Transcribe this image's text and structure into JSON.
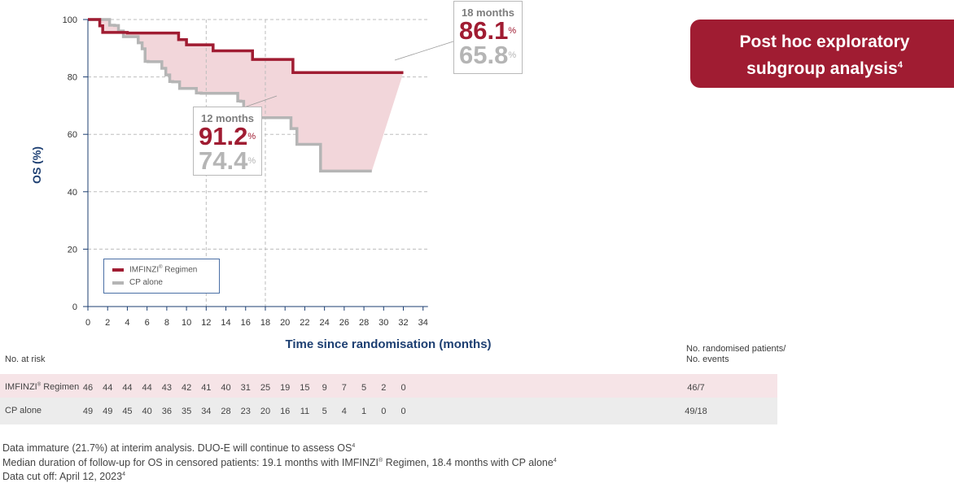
{
  "chart_data": {
    "type": "line",
    "title": "",
    "xlabel": "Time since randomisation (months)",
    "ylabel": "OS (%)",
    "xlim": [
      0,
      34
    ],
    "ylim": [
      0,
      100
    ],
    "xticks": [
      0,
      2,
      4,
      6,
      8,
      10,
      12,
      14,
      16,
      18,
      20,
      22,
      24,
      26,
      28,
      30,
      32,
      34
    ],
    "yticks": [
      0,
      20,
      40,
      60,
      80,
      100
    ],
    "grid": "horizontal dashed",
    "legend_position": "bottom-left",
    "series": [
      {
        "name": "IMFINZI® Regimen",
        "color": "#a01c32",
        "x": [
          0,
          1.2,
          1.2,
          1.5,
          1.5,
          4.0,
          4.0,
          9.2,
          9.2,
          10.0,
          10.0,
          12.7,
          12.7,
          16.7,
          16.7,
          20.8,
          20.8,
          32.0
        ],
        "y": [
          100,
          100,
          97.8,
          97.8,
          95.5,
          95.5,
          95.3,
          95.3,
          93.0,
          93.0,
          91.2,
          91.2,
          89.1,
          89.1,
          86.1,
          86.1,
          81.5,
          81.5
        ]
      },
      {
        "name": "CP alone",
        "color": "#b5b5b5",
        "x": [
          0,
          2.2,
          2.2,
          2.7,
          2.7,
          3.1,
          3.1,
          3.6,
          3.6,
          5.1,
          5.1,
          5.5,
          5.5,
          5.8,
          5.8,
          6.1,
          6.1,
          7.5,
          7.5,
          7.9,
          7.9,
          8.3,
          8.3,
          8.6,
          8.6,
          9.3,
          9.3,
          11.0,
          11.0,
          11.5,
          11.5,
          15.2,
          15.2,
          15.5,
          15.5,
          15.8,
          15.8,
          16.5,
          16.5,
          20.6,
          20.6,
          21.2,
          21.2,
          23.6,
          23.6,
          28.8
        ],
        "y": [
          100,
          100,
          98.0,
          98.0,
          97.9,
          97.9,
          96.0,
          96.0,
          94.0,
          94.0,
          91.9,
          91.9,
          89.8,
          89.8,
          85.4,
          85.4,
          85.3,
          85.3,
          83.0,
          83.0,
          80.7,
          80.7,
          78.4,
          78.4,
          78.3,
          78.3,
          76.0,
          76.0,
          74.4,
          74.4,
          74.3,
          74.3,
          71.6,
          71.6,
          71.5,
          71.5,
          68.5,
          68.5,
          65.8,
          65.8,
          62.0,
          62.0,
          56.5,
          56.5,
          47.2,
          47.2
        ]
      }
    ],
    "annotations": [
      {
        "month_label": "12 months",
        "imfinzi": "91.2",
        "cp": "74.4",
        "unit": "%"
      },
      {
        "month_label": "18 months",
        "imfinzi": "86.1",
        "cp": "65.8",
        "unit": "%"
      }
    ],
    "marker_lines_x": [
      12,
      18
    ]
  },
  "badge": {
    "line1": "Post hoc exploratory",
    "line2": "subgroup analysis",
    "ref": "4"
  },
  "legend": {
    "imfinzi": {
      "label": "IMFINZI",
      "reg": "®",
      "suffix": " Regimen",
      "color": "#a01c32"
    },
    "cp": {
      "label": "CP alone",
      "color": "#b5b5b5"
    }
  },
  "risk_table": {
    "title": "No. at risk",
    "totals_title_1": "No. randomised patients/",
    "totals_title_2": "No. events",
    "rows": [
      {
        "label": "IMFINZI",
        "reg": "®",
        "suffix": " Regimen",
        "values": [
          "46",
          "44",
          "44",
          "44",
          "43",
          "42",
          "41",
          "40",
          "31",
          "25",
          "19",
          "15",
          "9",
          "7",
          "5",
          "2",
          "0"
        ],
        "total": "46/7",
        "bg": "#f6e4e7"
      },
      {
        "label": "CP alone",
        "reg": "",
        "suffix": "",
        "values": [
          "49",
          "49",
          "45",
          "40",
          "36",
          "35",
          "34",
          "28",
          "23",
          "20",
          "16",
          "11",
          "5",
          "4",
          "1",
          "0",
          "0"
        ],
        "total": "49/18",
        "bg": "#ececec"
      }
    ]
  },
  "footnotes": {
    "line1": "Data immature (21.7%) at interim analysis. DUO-E will continue to assess OS",
    "line1_ref": "4",
    "line2a": "Median duration of follow-up for OS in censored patients: 19.1 months with IMFINZI",
    "line2_reg": "®",
    "line2b": " Regimen, 18.4 months with CP alone",
    "line2_ref": "4",
    "line3": "Data cut off: April 12, 2023",
    "line3_ref": "4"
  }
}
